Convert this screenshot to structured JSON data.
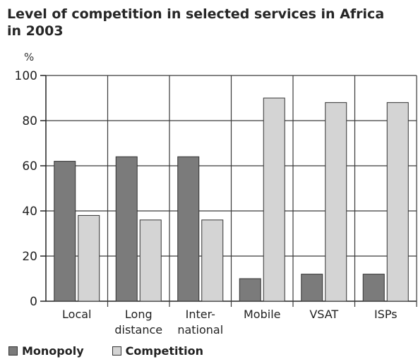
{
  "chart_data": {
    "type": "bar",
    "title_line1": "Level of competition in selected services in Africa",
    "title_line2": "in 2003",
    "ylabel": "%",
    "ylim": [
      0,
      100
    ],
    "yticks": [
      0,
      20,
      40,
      60,
      80,
      100
    ],
    "grid": true,
    "legend_position": "bottom-left",
    "categories": [
      {
        "line1": "Local",
        "line2": ""
      },
      {
        "line1": "Long",
        "line2": "distance"
      },
      {
        "line1": "Inter-",
        "line2": "national"
      },
      {
        "line1": "Mobile",
        "line2": ""
      },
      {
        "line1": "VSAT",
        "line2": ""
      },
      {
        "line1": "ISPs",
        "line2": ""
      }
    ],
    "series": [
      {
        "name": "Monopoly",
        "color": "#7b7b7b",
        "values": [
          62,
          64,
          64,
          10,
          12,
          12
        ]
      },
      {
        "name": "Competition",
        "color": "#d4d4d4",
        "values": [
          38,
          36,
          36,
          90,
          88,
          88
        ]
      }
    ]
  }
}
